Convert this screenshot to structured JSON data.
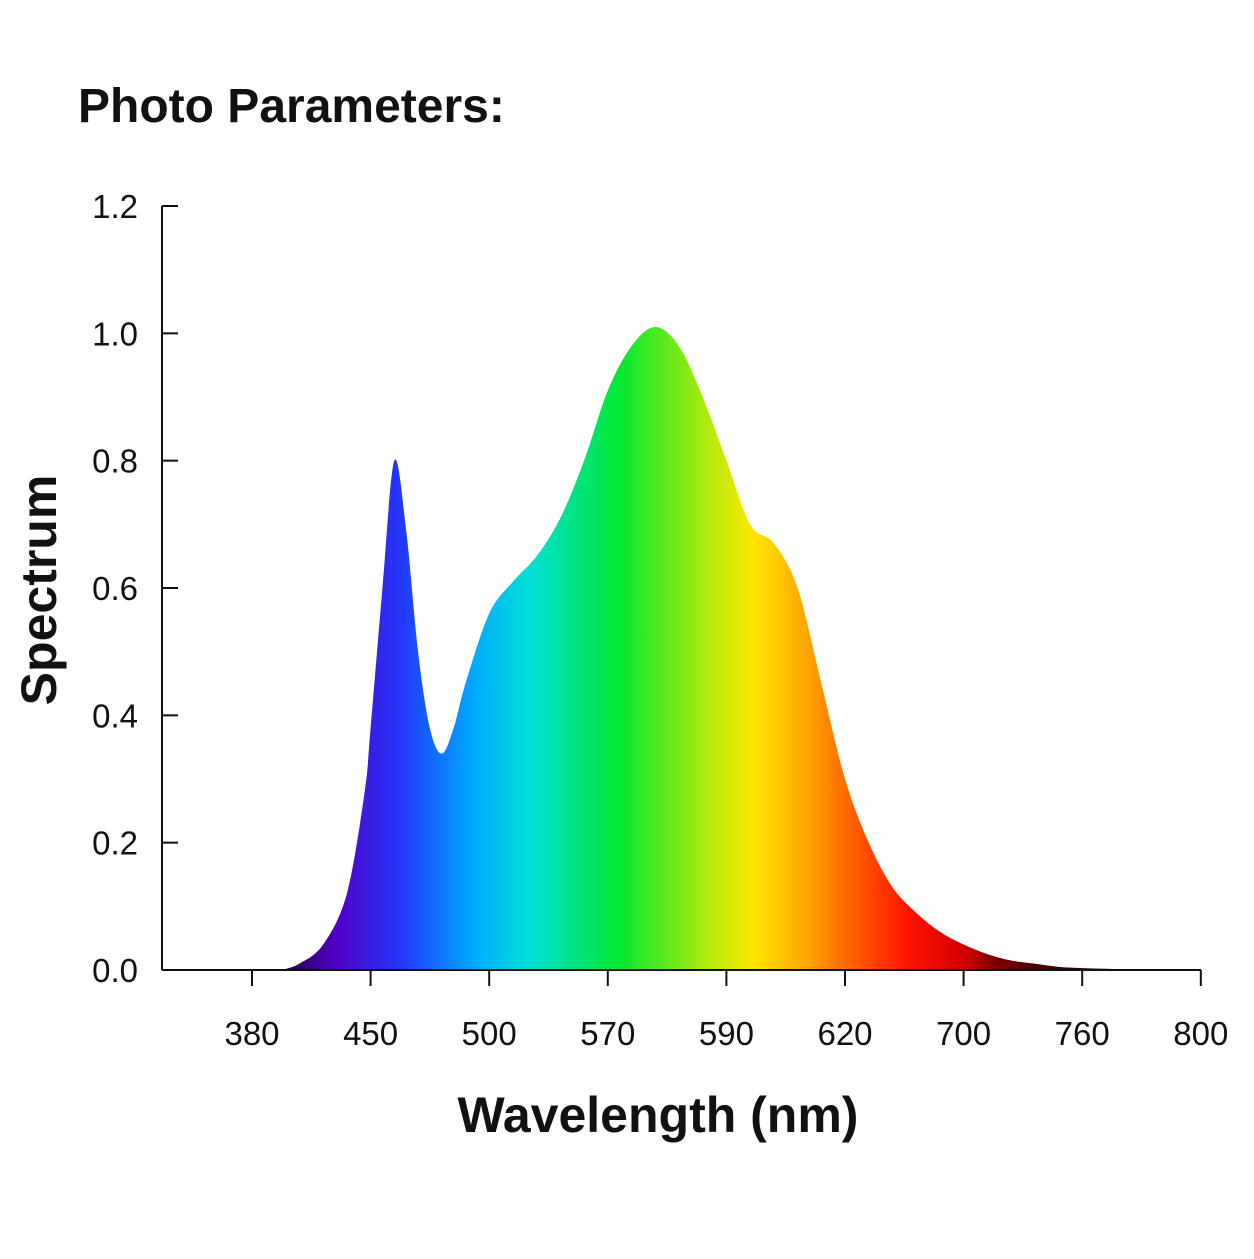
{
  "chart_data": {
    "type": "area",
    "title": "Photo Parameters:",
    "xlabel": "Wavelength (nm)",
    "ylabel": "Spectrum",
    "x_ticks": [
      "380",
      "450",
      "500",
      "570",
      "590",
      "620",
      "700",
      "760",
      "800"
    ],
    "y_ticks": [
      "1.2",
      "1.0",
      "0.8",
      "0.6",
      "0.4",
      "0.2",
      "0.0"
    ],
    "ylim": [
      0,
      1.2
    ],
    "grid": false,
    "fill": "visible-spectrum gradient",
    "series": [
      {
        "x_tick_position": [
          0.25,
          0.4,
          0.6,
          0.8,
          0.95,
          1.0,
          1.1,
          1.2,
          1.3,
          1.4,
          1.5,
          1.6,
          1.7,
          1.8,
          2.0,
          2.2,
          2.4,
          2.6,
          2.8,
          3.0,
          3.2,
          3.4,
          3.6,
          3.8,
          4.0,
          4.2,
          4.4,
          4.6,
          4.8,
          5.0,
          5.2,
          5.4,
          5.6,
          5.8,
          6.0,
          6.2,
          6.4,
          6.6,
          6.8,
          7.0,
          7.2,
          7.4,
          7.6,
          7.8,
          8.0
        ],
        "y": [
          0.0,
          0.01,
          0.04,
          0.12,
          0.28,
          0.38,
          0.6,
          0.8,
          0.69,
          0.5,
          0.38,
          0.34,
          0.38,
          0.45,
          0.56,
          0.61,
          0.65,
          0.71,
          0.8,
          0.91,
          0.98,
          1.01,
          0.98,
          0.9,
          0.8,
          0.7,
          0.67,
          0.6,
          0.45,
          0.3,
          0.2,
          0.13,
          0.09,
          0.06,
          0.04,
          0.025,
          0.015,
          0.01,
          0.005,
          0.003,
          0.002,
          0.001,
          0.001,
          0.0,
          0.0
        ]
      }
    ]
  }
}
